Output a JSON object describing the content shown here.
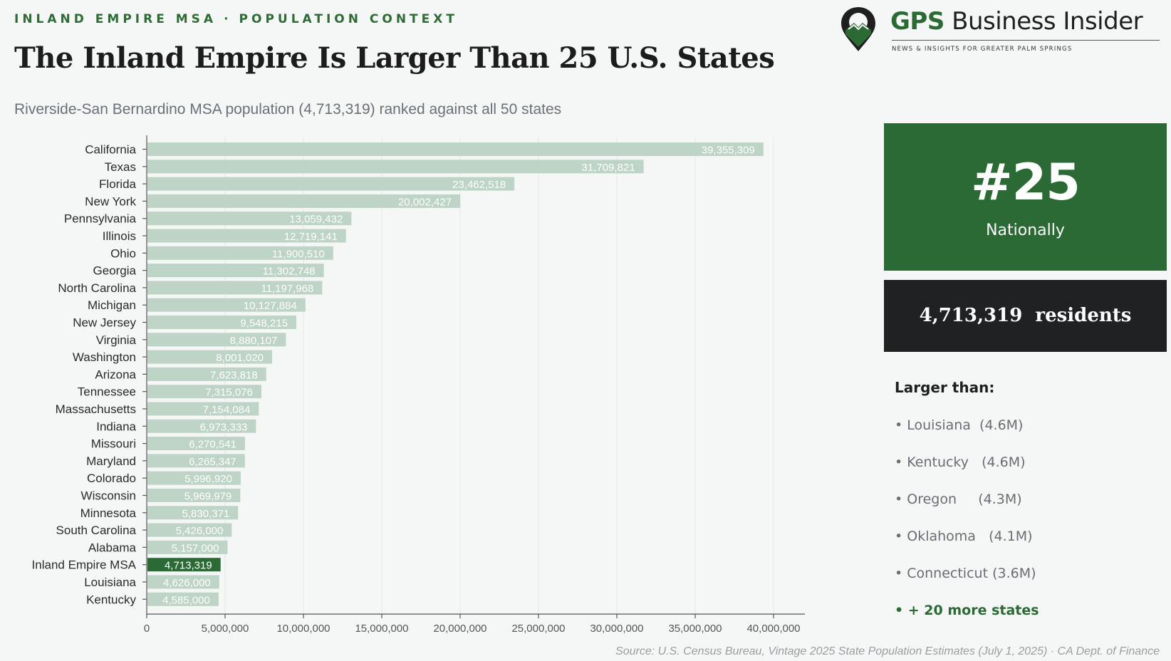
{
  "header": {
    "kicker_left": "INLAND EMPIRE MSA",
    "kicker_sep": "·",
    "kicker_right": "POPULATION CONTEXT",
    "title": "The Inland Empire Is Larger Than 25 U.S. States",
    "subtitle": "Riverside-San Bernardino MSA population (4,713,319) ranked against all 50 states"
  },
  "logo": {
    "brand_accent": "GPS",
    "brand_rest": "Business Insider",
    "tagline": "NEWS & INSIGHTS FOR GREATER PALM SPRINGS",
    "icon": "map-pin-mountain-icon"
  },
  "sidebar": {
    "rank": "#25",
    "rank_label": "Nationally",
    "residents": "4,713,319  residents",
    "larger_than_heading": "Larger than:",
    "larger_than": [
      "• Louisiana  (4.6M)",
      "• Kentucky   (4.6M)",
      "• Oregon     (4.3M)",
      "• Oklahoma   (4.1M)",
      "• Connecticut (3.6M)"
    ],
    "more": "• + 20 more states"
  },
  "source": "Source: U.S. Census Bureau, Vintage 2025 State Population Estimates (July 1, 2025)  ·  CA Dept. of Finance",
  "colors": {
    "accent": "#2b6a34",
    "bar": "#bdd4c6",
    "highlight": "#2b6a34",
    "dark_box": "#1f2123"
  },
  "chart_data": {
    "type": "bar",
    "orientation": "horizontal",
    "title": "",
    "xlabel": "",
    "ylabel": "",
    "xlim": [
      0,
      42000000
    ],
    "x_ticks": [
      0,
      5000000,
      10000000,
      15000000,
      20000000,
      25000000,
      30000000,
      35000000,
      40000000
    ],
    "x_tick_labels": [
      "0",
      "5,000,000",
      "10,000,000",
      "15,000,000",
      "20,000,000",
      "25,000,000",
      "30,000,000",
      "35,000,000",
      "40,000,000"
    ],
    "grid": true,
    "highlight_category": "Inland Empire MSA",
    "categories": [
      "California",
      "Texas",
      "Florida",
      "New York",
      "Pennsylvania",
      "Illinois",
      "Ohio",
      "Georgia",
      "North Carolina",
      "Michigan",
      "New Jersey",
      "Virginia",
      "Washington",
      "Arizona",
      "Tennessee",
      "Massachusetts",
      "Indiana",
      "Missouri",
      "Maryland",
      "Colorado",
      "Wisconsin",
      "Minnesota",
      "South Carolina",
      "Alabama",
      "Inland Empire MSA",
      "Louisiana",
      "Kentucky"
    ],
    "values": [
      39355309,
      31709821,
      23462518,
      20002427,
      13059432,
      12719141,
      11900510,
      11302748,
      11197968,
      10127884,
      9548215,
      8880107,
      8001020,
      7623818,
      7315076,
      7154084,
      6973333,
      6270541,
      6265347,
      5996920,
      5969979,
      5830371,
      5426000,
      5157000,
      4713319,
      4626000,
      4585000
    ],
    "value_labels": [
      "39,355,309",
      "31,709,821",
      "23,462,518",
      "20,002,427",
      "13,059,432",
      "12,719,141",
      "11,900,510",
      "11,302,748",
      "11,197,968",
      "10,127,884",
      "9,548,215",
      "8,880,107",
      "8,001,020",
      "7,623,818",
      "7,315,076",
      "7,154,084",
      "6,973,333",
      "6,270,541",
      "6,265,347",
      "5,996,920",
      "5,969,979",
      "5,830,371",
      "5,426,000",
      "5,157,000",
      "4,713,319",
      "4,626,000",
      "4,585,000"
    ]
  }
}
